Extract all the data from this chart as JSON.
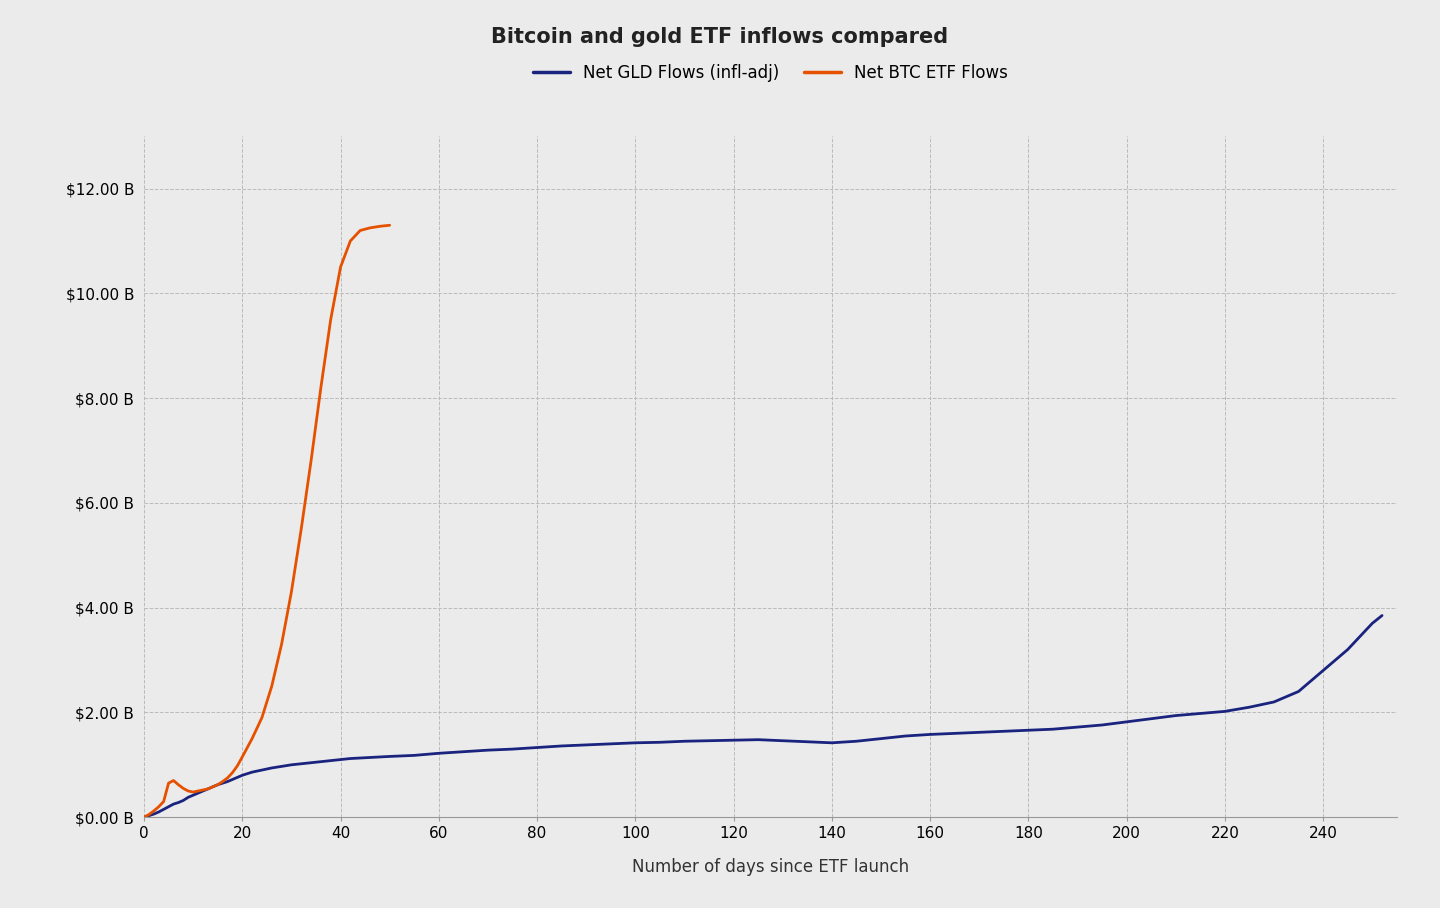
{
  "title": "Bitcoin and gold ETF inflows compared",
  "xlabel": "Number of days since ETF launch",
  "ylabel": "",
  "background_color": "#ebebeb",
  "plot_background_color": "#ebebeb",
  "gld_color": "#1a237e",
  "btc_color": "#e65100",
  "gld_label": "Net GLD Flows (infl-adj)",
  "btc_label": "Net BTC ETF Flows",
  "xlim": [
    0,
    255
  ],
  "ylim": [
    0,
    13000000000.0
  ],
  "yticks": [
    0,
    2000000000.0,
    4000000000.0,
    6000000000.0,
    8000000000.0,
    10000000000.0,
    12000000000.0
  ],
  "ytick_labels": [
    "$0.00 B",
    "$2.00 B",
    "$4.00 B",
    "$6.00 B",
    "$8.00 B",
    "$10.00 B",
    "$12.00 B"
  ],
  "xticks": [
    0,
    20,
    40,
    60,
    80,
    100,
    120,
    140,
    160,
    180,
    200,
    220,
    240
  ],
  "gld_x": [
    0,
    1,
    2,
    3,
    4,
    5,
    6,
    7,
    8,
    9,
    10,
    11,
    12,
    13,
    14,
    15,
    16,
    17,
    18,
    19,
    20,
    22,
    24,
    26,
    28,
    30,
    32,
    34,
    36,
    38,
    40,
    42,
    44,
    46,
    48,
    50,
    55,
    60,
    65,
    70,
    75,
    80,
    85,
    90,
    95,
    100,
    105,
    110,
    115,
    120,
    125,
    130,
    135,
    140,
    145,
    150,
    155,
    160,
    165,
    170,
    175,
    180,
    185,
    190,
    195,
    200,
    205,
    210,
    215,
    220,
    225,
    230,
    235,
    240,
    245,
    250,
    252
  ],
  "gld_y": [
    0,
    30000000.0,
    60000000.0,
    100000000.0,
    150000000.0,
    200000000.0,
    250000000.0,
    280000000.0,
    320000000.0,
    380000000.0,
    420000000.0,
    460000000.0,
    500000000.0,
    540000000.0,
    580000000.0,
    620000000.0,
    650000000.0,
    680000000.0,
    720000000.0,
    760000000.0,
    800000000.0,
    860000000.0,
    900000000.0,
    940000000.0,
    970000000.0,
    1000000000.0,
    1020000000.0,
    1040000000.0,
    1060000000.0,
    1080000000.0,
    1100000000.0,
    1120000000.0,
    1130000000.0,
    1140000000.0,
    1150000000.0,
    1160000000.0,
    1180000000.0,
    1220000000.0,
    1250000000.0,
    1280000000.0,
    1300000000.0,
    1330000000.0,
    1360000000.0,
    1380000000.0,
    1400000000.0,
    1420000000.0,
    1430000000.0,
    1450000000.0,
    1460000000.0,
    1470000000.0,
    1480000000.0,
    1460000000.0,
    1440000000.0,
    1420000000.0,
    1450000000.0,
    1500000000.0,
    1550000000.0,
    1580000000.0,
    1600000000.0,
    1620000000.0,
    1640000000.0,
    1660000000.0,
    1680000000.0,
    1720000000.0,
    1760000000.0,
    1820000000.0,
    1880000000.0,
    1940000000.0,
    1980000000.0,
    2020000000.0,
    2100000000.0,
    2200000000.0,
    2400000000.0,
    2800000000.0,
    3200000000.0,
    3700000000.0,
    3850000000.0
  ],
  "btc_x": [
    0,
    1,
    2,
    3,
    4,
    5,
    6,
    7,
    8,
    9,
    10,
    11,
    12,
    13,
    14,
    15,
    16,
    17,
    18,
    19,
    20,
    22,
    24,
    26,
    28,
    30,
    32,
    34,
    36,
    38,
    40,
    42,
    44,
    46,
    48,
    50
  ],
  "btc_y": [
    0,
    50000000.0,
    120000000.0,
    200000000.0,
    300000000.0,
    650000000.0,
    700000000.0,
    620000000.0,
    550000000.0,
    500000000.0,
    480000000.0,
    500000000.0,
    520000000.0,
    540000000.0,
    580000000.0,
    620000000.0,
    680000000.0,
    750000000.0,
    850000000.0,
    980000000.0,
    1150000000.0,
    1500000000.0,
    1900000000.0,
    2500000000.0,
    3300000000.0,
    4300000000.0,
    5500000000.0,
    6800000000.0,
    8200000000.0,
    9500000000.0,
    10500000000.0,
    11000000000.0,
    11200000000.0,
    11250000000.0,
    11280000000.0,
    11300000000.0
  ],
  "line_width": 2.0,
  "title_fontsize": 15,
  "tick_fontsize": 11,
  "label_fontsize": 12
}
